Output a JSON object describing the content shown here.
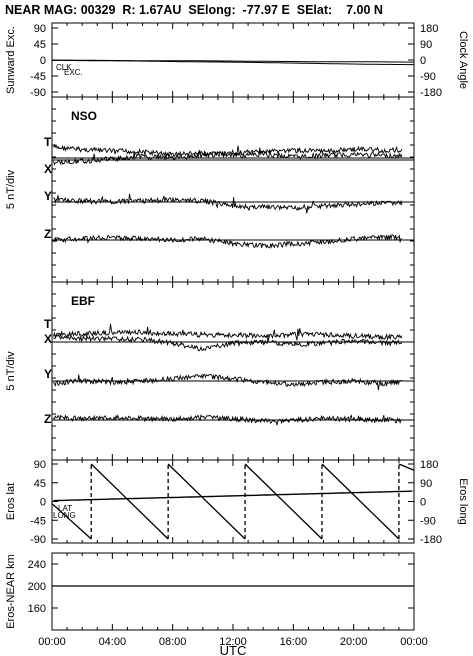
{
  "header": {
    "title": "NEAR MAG: 00329  R: 1.67AU  SElong:  -77.97 E  SElat:    7.00 N"
  },
  "chart_data": [
    {
      "type": "line",
      "panel": "sunward",
      "ylabel_left": "Sunward Exc.",
      "ylabel_right": "Clock Angle",
      "left_ticks": [
        "90",
        "45",
        "0",
        "-45",
        "-90"
      ],
      "right_ticks": [
        "180",
        "90",
        "0",
        "-90",
        "-180"
      ],
      "ylim_left": [
        -90,
        90
      ],
      "ylim_right": [
        -180,
        180
      ],
      "annotations": [
        "CLK",
        "EXC."
      ],
      "series": [
        {
          "name": "EXC.",
          "x": [
            0,
            3,
            6,
            9,
            12,
            15,
            18,
            21,
            24
          ],
          "values": [
            -1,
            -2,
            -3,
            -5,
            -6,
            -8,
            -10,
            -12,
            -13
          ]
        },
        {
          "name": "CLK",
          "x": [
            0,
            3,
            6,
            9,
            12,
            15,
            18,
            21,
            24
          ],
          "values": [
            0,
            -1,
            -2,
            -2,
            -3,
            -4,
            -5,
            -5,
            -6
          ]
        }
      ]
    },
    {
      "type": "line",
      "panel": "nso",
      "label": "NSO",
      "ylabel_left": "5 nT/div",
      "component_labels": [
        "T",
        "X",
        "Y",
        "Z"
      ],
      "series": [
        {
          "name": "T",
          "x": [
            0,
            2,
            4,
            6,
            8,
            10,
            12,
            14,
            16,
            18,
            20,
            22,
            24
          ],
          "values": [
            0.9,
            0.7,
            0.6,
            0.5,
            0.3,
            0.4,
            0.2,
            0.3,
            0.1,
            0.2,
            0.3,
            0.2,
            0.1
          ]
        },
        {
          "name": "X",
          "x": [
            0,
            2,
            4,
            6,
            8,
            10,
            12,
            14,
            16,
            18,
            20,
            22,
            24
          ],
          "values": [
            -0.2,
            -0.1,
            0.1,
            0.3,
            0.2,
            0.4,
            0.6,
            0.7,
            0.8,
            0.7,
            0.9,
            0.8,
            0.9
          ]
        },
        {
          "name": "Y",
          "x": [
            0,
            2,
            4,
            6,
            8,
            10,
            12,
            14,
            16,
            18,
            20,
            22,
            24
          ],
          "values": [
            0.2,
            0.1,
            0.0,
            0.1,
            0.2,
            0.1,
            -0.3,
            -0.4,
            -0.5,
            -0.3,
            -0.2,
            -0.1,
            0.0
          ]
        },
        {
          "name": "Z",
          "x": [
            0,
            2,
            4,
            6,
            8,
            10,
            12,
            14,
            16,
            18,
            20,
            22,
            24
          ],
          "values": [
            0.0,
            0.1,
            0.2,
            0.1,
            0.0,
            0.1,
            -0.3,
            -0.5,
            -0.3,
            -0.2,
            0.1,
            0.2,
            0.3
          ]
        }
      ]
    },
    {
      "type": "line",
      "panel": "ebf",
      "label": "EBF",
      "ylabel_left": "5 nT/div",
      "component_labels": [
        "T",
        "X",
        "Y",
        "Z"
      ],
      "series": [
        {
          "name": "T",
          "x": [
            0,
            2,
            4,
            6,
            8,
            10,
            12,
            14,
            16,
            18,
            20,
            22,
            24
          ],
          "values": [
            0.6,
            0.7,
            0.8,
            0.8,
            0.7,
            0.6,
            0.6,
            0.5,
            0.6,
            0.6,
            0.5,
            0.4,
            0.5
          ]
        },
        {
          "name": "X",
          "x": [
            0,
            2,
            4,
            6,
            8,
            10,
            12,
            14,
            16,
            18,
            20,
            22,
            24
          ],
          "values": [
            0.4,
            0.3,
            0.3,
            0.2,
            -0.1,
            -0.6,
            -0.1,
            0.0,
            -0.2,
            -0.1,
            0.1,
            -0.1,
            0.0
          ]
        },
        {
          "name": "Y",
          "x": [
            0,
            2,
            4,
            6,
            8,
            10,
            12,
            14,
            16,
            18,
            20,
            22,
            24
          ],
          "values": [
            -0.2,
            0.0,
            -0.1,
            0.0,
            0.2,
            0.4,
            0.2,
            -0.1,
            -0.3,
            -0.1,
            0.0,
            -0.2,
            0.0
          ]
        },
        {
          "name": "Z",
          "x": [
            0,
            2,
            4,
            6,
            8,
            10,
            12,
            14,
            16,
            18,
            20,
            22,
            24
          ],
          "values": [
            0.2,
            0.1,
            0.2,
            0.1,
            0.1,
            0.2,
            0.1,
            -0.1,
            0.0,
            0.1,
            0.1,
            0.0,
            -0.1
          ]
        }
      ]
    },
    {
      "type": "line",
      "panel": "eros",
      "ylabel_left": "Eros lat",
      "ylabel_right": "Eros long",
      "left_ticks": [
        "90",
        "45",
        "0",
        "-45",
        "-90"
      ],
      "right_ticks": [
        "180",
        "90",
        "0",
        "-90",
        "-180"
      ],
      "ylim_left": [
        -90,
        90
      ],
      "ylim_right": [
        -180,
        180
      ],
      "annotations": [
        "LAT",
        "LONG"
      ],
      "series": [
        {
          "name": "LAT",
          "x": [
            0,
            24
          ],
          "values": [
            2,
            25
          ]
        },
        {
          "name": "LONG",
          "x": [
            0,
            2.6,
            2.6,
            7.7,
            7.7,
            12.8,
            12.8,
            17.9,
            17.9,
            23,
            23,
            24
          ],
          "values": [
            -10,
            -180,
            180,
            -180,
            180,
            -180,
            180,
            -180,
            180,
            -180,
            180,
            150
          ]
        }
      ]
    },
    {
      "type": "line",
      "panel": "distance",
      "ylabel_left": "Eros-NEAR km",
      "left_ticks": [
        "240",
        "200",
        "160"
      ],
      "ylim_left": [
        120,
        260
      ],
      "series": [
        {
          "name": "Eros-NEAR km",
          "x": [
            0,
            24
          ],
          "values": [
            200,
            200
          ]
        }
      ],
      "xlabel": "UTC",
      "x_ticks": [
        "00:00",
        "04:00",
        "08:00",
        "12:00",
        "16:00",
        "20:00",
        "00:00"
      ],
      "xlim": [
        0,
        24
      ]
    }
  ]
}
